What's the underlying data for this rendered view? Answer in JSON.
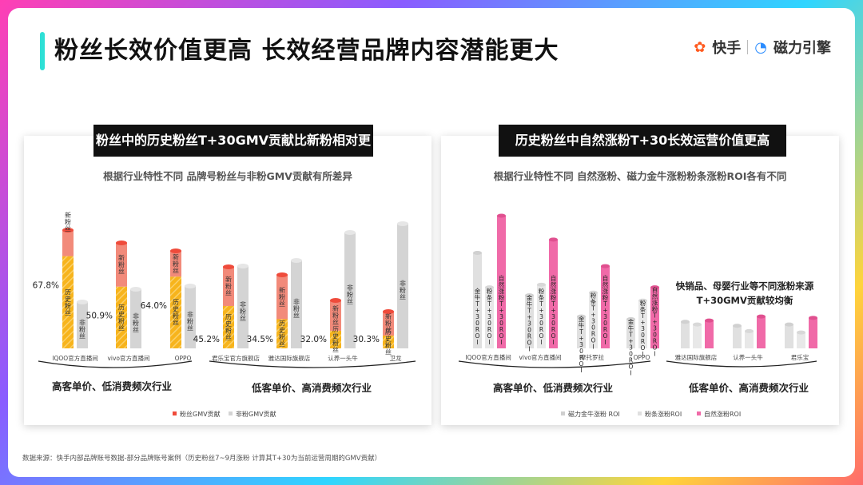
{
  "title": "粉丝长效价值更高 长效经营品牌内容潜能更大",
  "logo": {
    "kuaishou": "快手",
    "cili": "磁力引擎"
  },
  "source_note": "数据来源：快手内部品牌账号数据-部分品牌账号案例（历史粉丝7~9月涨粉 计算其T+30为当前运营周期的GMV贡献）",
  "colors": {
    "fan": "#ef4b3b",
    "fan_light": "#f28a7a",
    "hist": "#f7b41c",
    "nonfan": "#d4d4d4",
    "pink": "#f06aa8",
    "gray_light": "#dcdcdc",
    "gray_mid": "#c8c8c8"
  },
  "chart_data": [
    {
      "type": "bar",
      "title": "粉丝中的历史粉丝T+30GMV贡献比新粉相对更强",
      "subtitle": "根据行业特性不同 品牌号粉丝与非粉GMV贡献有所差异",
      "categories": [
        "IQOO官方直播间",
        "vivo官方直播间",
        "OPPO",
        "君乐宝官方旗舰店",
        "雅达国际旗舰店",
        "认养一头牛",
        "卫龙"
      ],
      "series": [
        {
          "name": "粉丝GMV贡献",
          "segments": [
            "新粉丝",
            "历史粉丝"
          ],
          "hist_pct": [
            67.8,
            50.9,
            64.0,
            45.2,
            34.5,
            32.0,
            30.3
          ]
        },
        {
          "name": "非粉GMV贡献",
          "label": "非粉丝"
        }
      ],
      "pct_labels": [
        "67.8%",
        "50.9%",
        "64.0%",
        "45.2%",
        "34.5%",
        "32.0%",
        "30.3%"
      ],
      "segment_labels": {
        "new": "新粉丝",
        "hist": "历史粉丝",
        "non": "非粉丝"
      },
      "fan_share": [
        0.62,
        0.52,
        0.48,
        0.4,
        0.36,
        0.28,
        0.2
      ],
      "groups": [
        {
          "label": "高客单价、低消费频次行业"
        },
        {
          "label": "低客单价、高消费频次行业"
        }
      ],
      "legend": [
        "粉丝GMV贡献",
        "非粉GMV贡献"
      ],
      "legend_position": "bottom"
    },
    {
      "type": "bar",
      "title": "历史粉丝中自然涨粉T+30长效运营价值更高",
      "subtitle": "根据行业特性不同 自然涨粉、磁力金牛涨粉粉条涨粉ROI各有不同",
      "categories": [
        "IQOO官方直播间",
        "vivo官方直播间",
        "摩托罗拉",
        "OPPO",
        "雅达国际旗舰店",
        "认养一头牛",
        "君乐宝"
      ],
      "series": [
        {
          "name": "磁力金牛涨粉 ROI",
          "bar_label": "金牛T+30ROI",
          "values": [
            0.72,
            0.4,
            0.24,
            0.22,
            0.2,
            0.17,
            0.18
          ]
        },
        {
          "name": "粉条涨粉ROI",
          "bar_label": "粉条T+30ROI",
          "values": [
            0.46,
            0.48,
            0.42,
            0.36,
            0.18,
            0.13,
            0.12
          ]
        },
        {
          "name": "自然涨粉ROI",
          "bar_label": "自然涨粉T+30ROI",
          "values": [
            1.0,
            0.82,
            0.62,
            0.46,
            0.21,
            0.24,
            0.23
          ]
        }
      ],
      "annotation": [
        "快销品、母婴行业等不同涨粉来源",
        "T+30GMV贡献较均衡"
      ],
      "groups": [
        {
          "label": "高客单价、低消费频次行业"
        },
        {
          "label": "低客单价、高消费频次行业"
        }
      ],
      "legend": [
        "磁力金牛涨粉 ROI",
        "粉条涨粉ROI",
        "自然涨粉ROI"
      ],
      "legend_position": "bottom"
    }
  ]
}
